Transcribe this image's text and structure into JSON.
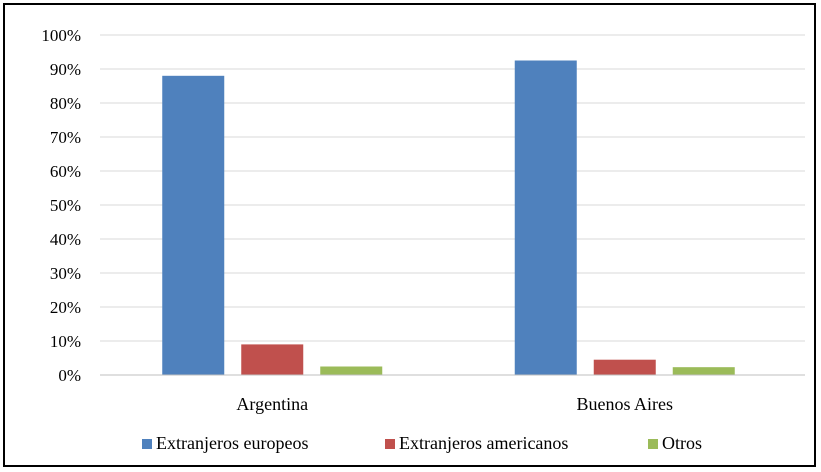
{
  "chart_data": {
    "type": "bar",
    "categories": [
      "Argentina",
      "Buenos Aires"
    ],
    "series": [
      {
        "name": "Extranjeros europeos",
        "values": [
          88,
          92.5
        ],
        "color": "#4F81BD"
      },
      {
        "name": "Extranjeros americanos",
        "values": [
          9,
          4.5
        ],
        "color": "#C0504D"
      },
      {
        "name": "Otros",
        "values": [
          2.5,
          2.3
        ],
        "color": "#9BBB59"
      }
    ],
    "y_ticks": [
      "0%",
      "10%",
      "20%",
      "30%",
      "40%",
      "50%",
      "60%",
      "70%",
      "80%",
      "90%",
      "100%"
    ],
    "ylim": [
      0,
      100
    ],
    "grid": true,
    "legend_position": "bottom",
    "title": "",
    "xlabel": "",
    "ylabel": ""
  }
}
